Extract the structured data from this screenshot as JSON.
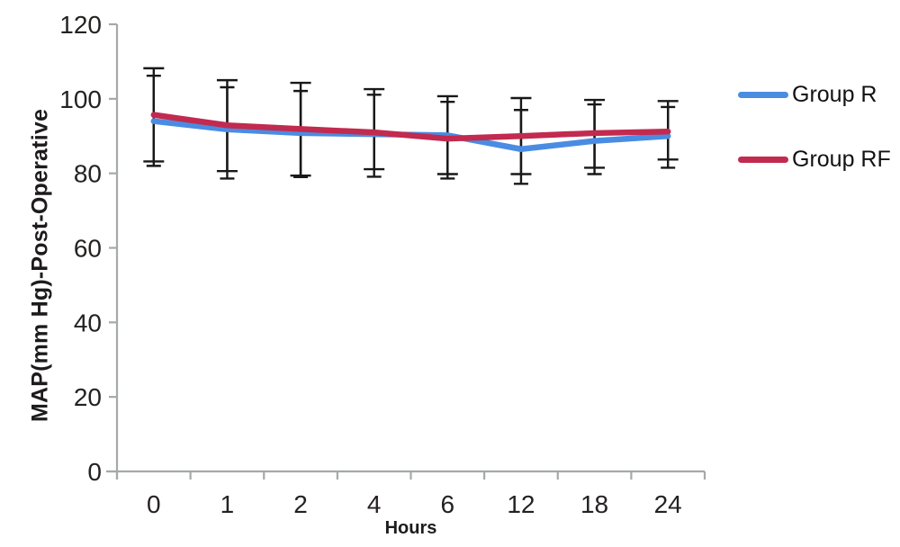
{
  "figure": {
    "background": "#ffffff",
    "axis_color": "#a5a9a8",
    "text_color": "#242221",
    "error_bar_color": "#181818"
  },
  "chart_data": {
    "type": "line",
    "title": "",
    "xlabel": "Hours",
    "ylabel": "MAP(mm Hg)-Post-Operative",
    "categories": [
      "0",
      "1",
      "2",
      "4",
      "6",
      "12",
      "18",
      "24"
    ],
    "y_ticks": [
      0,
      20,
      40,
      60,
      80,
      100,
      120
    ],
    "ylim": [
      0,
      120
    ],
    "grid": false,
    "legend_position": "right",
    "error_bars": true,
    "series": [
      {
        "name": "Group R",
        "color": "#4a8ce2",
        "values": [
          94.0,
          91.8,
          90.8,
          90.5,
          90.2,
          86.5,
          88.7,
          90.0
        ],
        "error_low": [
          82.0,
          78.6,
          79.0,
          79.1,
          78.6,
          77.2,
          79.8,
          81.5
        ],
        "error_high": [
          106.2,
          103.1,
          102.1,
          101.1,
          99.2,
          97.0,
          98.5,
          97.8
        ]
      },
      {
        "name": "Group RF",
        "color": "#c22a4f",
        "values": [
          95.7,
          92.9,
          91.9,
          91.0,
          89.3,
          90.0,
          90.8,
          91.2
        ],
        "error_low": [
          83.2,
          80.6,
          79.4,
          81.1,
          79.8,
          79.8,
          81.5,
          83.7
        ],
        "error_high": [
          108.2,
          105.0,
          104.3,
          102.6,
          100.7,
          100.2,
          99.7,
          99.4
        ]
      }
    ]
  }
}
